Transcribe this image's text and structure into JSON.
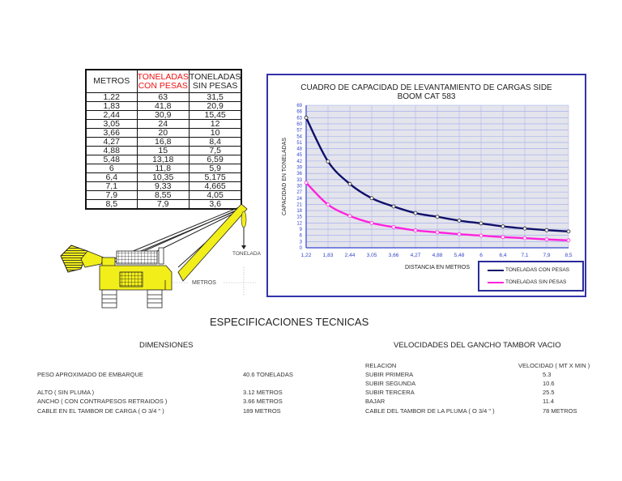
{
  "table": {
    "headers": [
      {
        "line1": "METROS",
        "line2": ""
      },
      {
        "line1": "TONELADAS",
        "line2": "CON PESAS"
      },
      {
        "line1": "TONELADAS",
        "line2": "SIN PESAS"
      }
    ],
    "rows": [
      [
        "1,22",
        "63",
        "31,5"
      ],
      [
        "1,83",
        "41,8",
        "20,9"
      ],
      [
        "2,44",
        "30,9",
        "15,45"
      ],
      [
        "3,05",
        "24",
        "12"
      ],
      [
        "3,66",
        "20",
        "10"
      ],
      [
        "4,27",
        "16,8",
        "8,4"
      ],
      [
        "4,88",
        "15",
        "7,5"
      ],
      [
        "5,48",
        "13,18",
        "6,59"
      ],
      [
        "6",
        "11,8",
        "5,9"
      ],
      [
        "6,4",
        "10,35",
        "5,175"
      ],
      [
        "7,1",
        "9,33",
        "4,665"
      ],
      [
        "7,9",
        "8,55",
        "4,05"
      ],
      [
        "8,5",
        "7,9",
        "3,6"
      ]
    ],
    "header_accent_color": "#ee1111"
  },
  "chart_data": {
    "type": "line",
    "title": "CUADRO DE CAPACIDAD DE  LEVANTAMIENTO DE CARGAS SIDE",
    "subtitle": "BOOM CAT 583",
    "xlabel": "DISTANCIA EN METROS",
    "ylabel": "CAPACIDAD EN TONELADAS",
    "categories": [
      "1,22",
      "1,83",
      "2,44",
      "3,05",
      "3,66",
      "4,27",
      "4,88",
      "5,48",
      "6",
      "6,4",
      "7,1",
      "7,9",
      "8,5"
    ],
    "y_ticks": [
      0,
      3,
      6,
      9,
      12,
      15,
      18,
      21,
      24,
      27,
      30,
      33,
      36,
      39,
      42,
      45,
      48,
      51,
      54,
      57,
      60,
      63,
      66,
      69
    ],
    "ylim": [
      0,
      69
    ],
    "grid": true,
    "legend_position": "bottom-right",
    "series": [
      {
        "name": "TONELADAS CON PESAS",
        "color": "#10106a",
        "values": [
          63,
          41.8,
          30.9,
          24,
          20,
          16.8,
          15,
          13.18,
          11.8,
          10.35,
          9.33,
          8.55,
          7.9
        ]
      },
      {
        "name": "TONELADAS SIN PESAS",
        "color": "#ff22dd",
        "values": [
          31.5,
          20.9,
          15.45,
          12,
          10,
          8.4,
          7.5,
          6.59,
          5.9,
          5.175,
          4.665,
          4.05,
          3.6
        ]
      }
    ]
  },
  "diagram": {
    "load_label": "TONELADA",
    "distance_label": "METROS"
  },
  "specs": {
    "title": "ESPECIFICACIONES TECNICAS",
    "dimensions": {
      "heading": "DIMENSIONES",
      "items": [
        {
          "label": "PESO APROXIMADO DE EMBARQUE",
          "value": "40.6 TONELADAS"
        },
        {
          "label": "ALTO ( SIN PLUMA )",
          "value": "3.12 METROS"
        },
        {
          "label": "ANCHO ( CON CONTRAPESOS RETRAIDOS )",
          "value": "3.66 METROS"
        },
        {
          "label": "CABLE EN EL TAMBOR DE CARGA ( O 3/4 \" )",
          "value": "189 METROS"
        }
      ]
    },
    "speeds": {
      "heading": "VELOCIDADES DEL GANCHO TAMBOR VACIO",
      "col_label": "RELACION",
      "col_value": "VELOCIDAD ( MT X MIN )",
      "items": [
        {
          "label": "SUBIR PRIMERA",
          "value": "5.3"
        },
        {
          "label": "SUBIR SEGUNDA",
          "value": "10.6"
        },
        {
          "label": "SUBIR TERCERA",
          "value": "25.5"
        },
        {
          "label": "BAJAR",
          "value": "11.4"
        },
        {
          "label": "CABLE DEL TAMBOR DE LA PLUMA ( O 3/4 \" )",
          "value": "78 METROS"
        }
      ]
    }
  }
}
